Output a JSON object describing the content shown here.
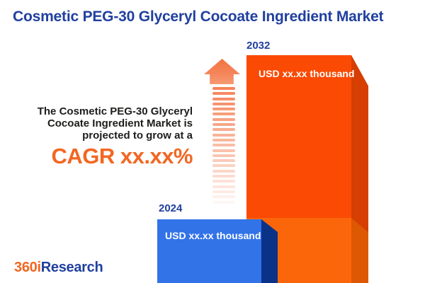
{
  "title": "Cosmetic PEG-30 Glyceryl Cocoate Ingredient Market",
  "annotation": {
    "line1": "The Cosmetic PEG-30 Glyceryl",
    "line2": "Cocoate Ingredient Market is",
    "line3": "projected to grow at a",
    "cagr_text": "CAGR xx.xx%"
  },
  "logo": {
    "prefix": "360i",
    "suffix": "Research"
  },
  "chart_data": {
    "type": "bar",
    "title": "Cosmetic PEG-30 Glyceryl Cocoate Ingredient Market",
    "categories": [
      "2024",
      "2032"
    ],
    "series": [
      {
        "name": "2024",
        "value_label": "USD xx.xx thousand",
        "color": "#3273E8"
      },
      {
        "name": "2032",
        "value_label": "USD xx.xx thousand",
        "color": "#FB4A04"
      }
    ],
    "annotations": [
      "The Cosmetic PEG-30 Glyceryl Cocoate Ingredient Market is projected to grow at a CAGR xx.xx%"
    ],
    "legend_position": "none",
    "grid": false,
    "note": "values masked as xx.xx in source image"
  },
  "colors": {
    "title_blue": "#21409F",
    "accent_orange": "#F26722",
    "bar_2032_front": "#FB4A04",
    "bar_2032_front_lower": "#FC660A",
    "bar_2032_side": "#D63E02",
    "bar_2032_side_lower": "#DC5803",
    "bar_2024_front": "#3273E8",
    "bar_2024_side": "#0A3287",
    "arrow_coral": "#F5845A"
  },
  "decor": {
    "stripe_count": 23
  }
}
